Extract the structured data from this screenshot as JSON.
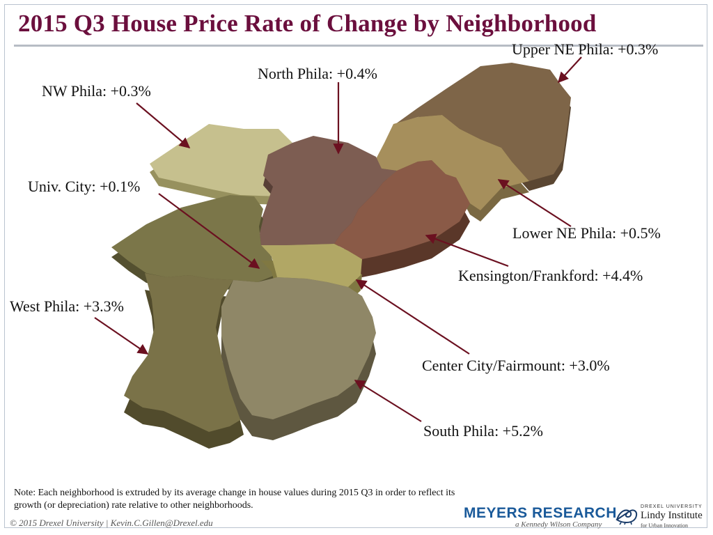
{
  "title": "2015 Q3 House Price Rate of Change by Neighborhood",
  "neighborhoods": [
    {
      "id": "upper-ne",
      "label": "Upper NE Phila: +0.3%",
      "name": "Upper NE Phila",
      "change_pct": 0.3,
      "color": "#7e6548"
    },
    {
      "id": "north",
      "label": "North Phila: +0.4%",
      "name": "North Phila",
      "change_pct": 0.4,
      "color": "#7d5d52"
    },
    {
      "id": "nw",
      "label": "NW Phila: +0.3%",
      "name": "NW Phila",
      "change_pct": 0.3,
      "color": "#c6c08e"
    },
    {
      "id": "univ-city",
      "label": "Univ. City: +0.1%",
      "name": "Univ. City",
      "change_pct": 0.1,
      "color": "#7b7649"
    },
    {
      "id": "lower-ne",
      "label": "Lower NE Phila: +0.5%",
      "name": "Lower NE Phila",
      "change_pct": 0.5,
      "color": "#a68f5c"
    },
    {
      "id": "kensington",
      "label": "Kensington/Frankford: +4.4%",
      "name": "Kensington/Frankford",
      "change_pct": 4.4,
      "color": "#8a5a47"
    },
    {
      "id": "west",
      "label": "West Phila: +3.3%",
      "name": "West Phila",
      "change_pct": 3.3,
      "color": "#7a7248"
    },
    {
      "id": "center-city",
      "label": "Center City/Fairmount: +3.0%",
      "name": "Center City/Fairmount",
      "change_pct": 3.0,
      "color": "#b1a765"
    },
    {
      "id": "south",
      "label": "South Phila: +5.2%",
      "name": "South Phila",
      "change_pct": 5.2,
      "color": "#8f8767"
    }
  ],
  "note": "Note: Each neighborhood is extruded by its average change in house values during 2015 Q3 in order to reflect its growth (or depreciation) rate relative to other neighborhoods.",
  "copyright": "© 2015 Drexel University | Kevin.C.Gillen@Drexel.edu",
  "logos": {
    "meyers": "MEYERS RESEARCH",
    "meyers_sub": "a Kennedy Wilson Company",
    "drexel": "DREXEL UNIVERSITY",
    "lindy": "Lindy Institute",
    "lindy_sub": "for Urban Innovation"
  },
  "colors": {
    "title": "#6b0f3d",
    "arrow": "#6b1020",
    "meyers_blue": "#1a5a9a"
  }
}
